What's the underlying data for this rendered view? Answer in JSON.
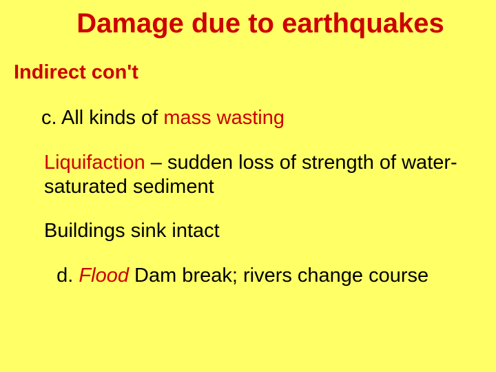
{
  "slide": {
    "background_color": "#ffff66",
    "text_color": "#000000",
    "accent_color": "#cc0000",
    "title": "Damage due to earthquakes",
    "title_fontsize": 40,
    "subtitle": "Indirect con't",
    "subtitle_fontsize": 29,
    "body_fontsize": 29,
    "lines": {
      "c_prefix": "c.  All kinds of ",
      "c_highlight": "mass wasting",
      "liqui_highlight": "Liquifaction",
      "liqui_rest": " – sudden loss of strength of water-saturated sediment",
      "buildings": "Buildings sink intact",
      "d_prefix": "d.  ",
      "d_flood": "Flood",
      "d_rest": "  Dam break; rivers change course"
    }
  }
}
